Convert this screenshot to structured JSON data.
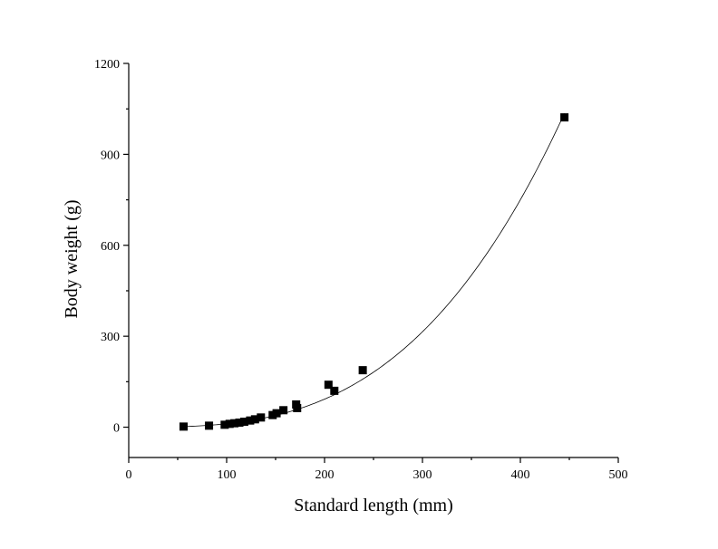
{
  "chart_data": {
    "type": "scatter",
    "title": "",
    "xlabel": "Standard length (mm)",
    "ylabel": "Body weight (g)",
    "xlim": [
      0,
      500
    ],
    "ylim": [
      -100,
      1200
    ],
    "xticks": [
      0,
      100,
      200,
      300,
      400,
      500
    ],
    "yticks": [
      0,
      300,
      600,
      900,
      1200
    ],
    "xtick_labels": [
      "0",
      "100",
      "200",
      "300",
      "400",
      "500"
    ],
    "ytick_labels": [
      "0",
      "300",
      "600",
      "900",
      "1200"
    ],
    "grid": false,
    "legend": "none",
    "marker": "square",
    "series": [
      {
        "values": [
          {
            "x": 56,
            "y": 2
          },
          {
            "x": 82,
            "y": 5
          },
          {
            "x": 98,
            "y": 8
          },
          {
            "x": 103,
            "y": 11
          },
          {
            "x": 108,
            "y": 13
          },
          {
            "x": 113,
            "y": 15
          },
          {
            "x": 118,
            "y": 18
          },
          {
            "x": 124,
            "y": 22
          },
          {
            "x": 129,
            "y": 26
          },
          {
            "x": 135,
            "y": 32
          },
          {
            "x": 147,
            "y": 40
          },
          {
            "x": 151,
            "y": 46
          },
          {
            "x": 158,
            "y": 56
          },
          {
            "x": 171,
            "y": 75
          },
          {
            "x": 172,
            "y": 63
          },
          {
            "x": 204,
            "y": 140
          },
          {
            "x": 210,
            "y": 120
          },
          {
            "x": 239,
            "y": 188
          },
          {
            "x": 445,
            "y": 1022
          }
        ]
      }
    ],
    "fit_line": {
      "type": "power",
      "a": 1.04e-05,
      "b": 3.02,
      "x_range": [
        56,
        445
      ]
    }
  }
}
